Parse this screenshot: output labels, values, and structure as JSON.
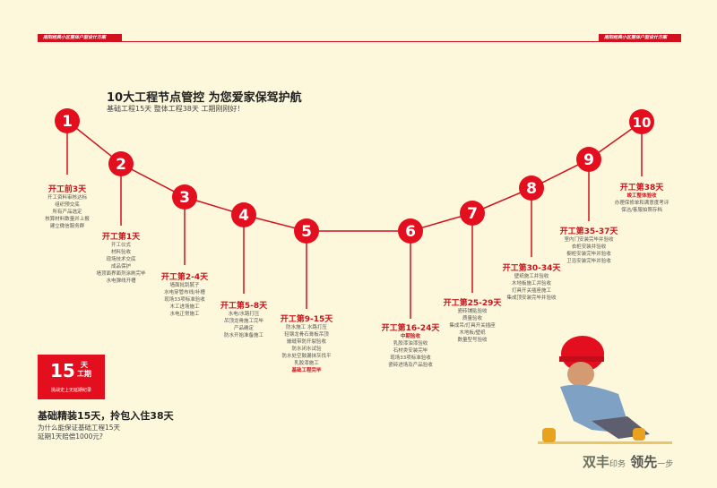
{
  "header": {
    "left_label": "南阳经典小区整体户型设计方案",
    "right_label": "南阳经典小区整体户型设计方案"
  },
  "title": "10大工程节点管控  为您爱家保驾护航",
  "subtitle": "基础工程15天  整体工程38天  工期刚刚好！",
  "accent_color": "#d2111f",
  "steps": [
    {
      "num": "1",
      "title": "开工前3天",
      "lines": [
        "开工资料审核达标",
        "组织预交底",
        "所有产品选定",
        "核算材料数量并上报",
        "建立微信服务群"
      ]
    },
    {
      "num": "2",
      "title": "开工第1天",
      "lines": [
        "开工仪式",
        "材料验收",
        "现场技术交底",
        "成品保护",
        "墙顶面界面剂涂刷完毕",
        "水电弹线开槽"
      ]
    },
    {
      "num": "3",
      "title": "开工第2-4天",
      "lines": [
        "墙面批刮腻子",
        "水电穿管布线/补槽",
        "现场33项标准验收",
        "木工进场施工",
        "水电正常施工"
      ]
    },
    {
      "num": "4",
      "title": "开工第5-8天",
      "lines": [
        "水电/水路打压",
        "吊顶龙骨施工完毕",
        "产品确定",
        "防水开始准备施工"
      ]
    },
    {
      "num": "5",
      "title": "开工第9-15天",
      "lines": [
        "防水施工 水路打压",
        "轻钢龙骨石膏板吊顶",
        "嵌缝带防开裂验收",
        "防水闭水试验",
        "防水处空鼓漏抹灰找平",
        "乳胶漆施工"
      ],
      "highlight_end": "基础工程完毕"
    },
    {
      "num": "6",
      "title": "开工第16-24天",
      "highlight": "中期验收",
      "lines": [
        "乳胶漆油漆验收",
        "石材类安装完毕",
        "现场33项标准验收",
        "瓷砖进场及产品验收"
      ]
    },
    {
      "num": "7",
      "title": "开工第25-29天",
      "lines": [
        "瓷砖铺贴验收",
        "质量验收",
        "集成吊/灯具开关插座",
        "木地板/壁纸",
        "数量型号验收"
      ]
    },
    {
      "num": "8",
      "title": "开工第30-34天",
      "lines": [
        "壁纸施工并验收",
        "木地板施工并验收",
        "灯具开关插座施工",
        "集成顶安装完毕并验收"
      ]
    },
    {
      "num": "9",
      "title": "开工第35-37天",
      "lines": [
        "室内门安装完毕并验收",
        "衣柜安装并验收",
        "橱柜安装完毕并验收",
        "卫浴安装完毕并验收"
      ]
    },
    {
      "num": "10",
      "title": "开工第38天",
      "highlight": "竣工整体验收",
      "lines": [
        "办理保修单和满意度考评",
        "保洁/客服拍照存档"
      ]
    }
  ],
  "badge": {
    "number": "15",
    "unit1": "天",
    "unit2": "工期",
    "slogan": "挑战史上无延期纪录"
  },
  "bottom": {
    "title": "基础精装15天，拎包入住38天",
    "line1": "为什么能保证基础工程15天",
    "line2": "延期1天赔偿1000元?"
  },
  "logo": {
    "part1": "双丰",
    "part2": "印务",
    "part3": "领先",
    "part4": "一步"
  }
}
